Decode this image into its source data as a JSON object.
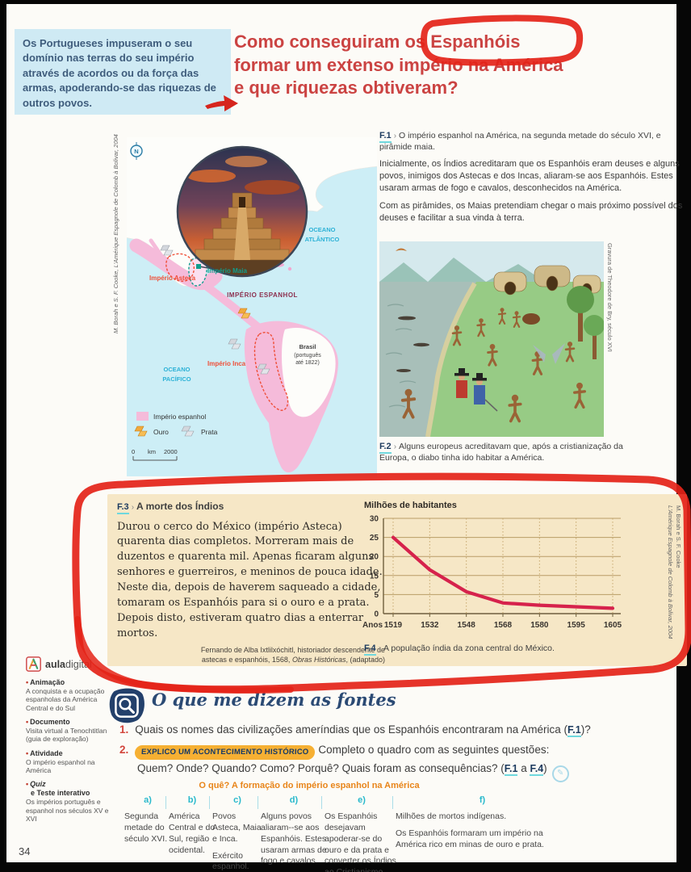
{
  "glyphs": {
    "chevron": "›",
    "pencil": "✎"
  },
  "page": {
    "number": "34"
  },
  "intro": {
    "text": "Os Portugueses impuseram o seu domínio nas terras do seu império através de acordos ou da força das armas, apoderando-se das riquezas de outros povos."
  },
  "title": {
    "line1": "Como conseguiram os Espanhóis",
    "line2": "formar um extenso império na América",
    "line3": "e que riquezas obtiveram?"
  },
  "f1": {
    "label": "F.1",
    "caption": "O império espanhol na América, na segunda metade do século XVI, e pirâmide maia.",
    "para1": "Inicialmente, os Índios acreditaram que os Espanhóis eram deuses e alguns povos, inimigos dos Astecas e dos Incas, aliaram-se aos Espanhóis. Estes usaram armas de fogo e cavalos, desconhecidos na América.",
    "para2": "Com as pirâmides, os Maias pretendiam chegar o mais próximo possível dos deuses e facilitar a sua vinda à terra."
  },
  "map": {
    "source": "M. Borah e S. F. Cooke, L'Amérique Espagnole de Colomb à Bolivar, 2004",
    "north": "N",
    "ocean_atlantico_1": "OCEANO",
    "ocean_atlantico_2": "ATLÂNTICO",
    "ocean_pacifico_1": "OCEANO",
    "ocean_pacifico_2": "PACÍFICO",
    "imperio_espanhol": "IMPÉRIO ESPANHOL",
    "imperio_maia": "Império Maia",
    "imperio_asteca": "Império Asteca",
    "imperio_inca": "Império Inca",
    "brasil_1": "Brasil",
    "brasil_2": "(português",
    "brasil_3": "até 1822)",
    "legend": {
      "imperio_espanhol": "Império espanhol",
      "ouro": "Ouro",
      "prata": "Prata"
    },
    "scale": {
      "zero": "0",
      "unit": "km",
      "max": "2000"
    }
  },
  "f2": {
    "label": "F.2",
    "caption": "Alguns europeus acreditavam que, após a cristianização da Europa, o diabo tinha ido habitar a América.",
    "credit": "Gravura de Theodore de Bry, século XVI"
  },
  "f3": {
    "label": "F.3",
    "title": "A morte dos Índios",
    "quote": "Durou o cerco do México (império Asteca) quarenta dias completos. Morreram mais de duzentos e quarenta mil. Apenas ficaram alguns senhores e guerreiros, e meninos de pouca idade. Neste dia, depois de haverem saqueado a cidade, tomaram os Espanhóis para si o ouro e a prata. Depois disto, estiveram quatro dias a enterrar mortos.",
    "source_line1": "Fernando de Alba Ixtlilxóchitl, historiador descendente de",
    "source_line2a": "astecas e espanhóis, 1568, ",
    "source_line2b": "Obras Históricas",
    "source_line2c": ", (adaptado)"
  },
  "f4": {
    "label": "F.4",
    "caption": "A população índia da zona central do México."
  },
  "chart_data": {
    "type": "line",
    "title": "Milhões de habitantes",
    "xlabel": "Anos",
    "x": [
      "1519",
      "1532",
      "1548",
      "1568",
      "1580",
      "1595",
      "1605"
    ],
    "values": [
      25,
      16.5,
      6.5,
      2.8,
      2.2,
      1.8,
      1.4
    ],
    "y_tick_labels": [
      "30",
      "25",
      "20",
      "15",
      "5",
      "0"
    ],
    "y_tick_values": [
      30,
      25,
      20,
      15,
      5,
      0
    ],
    "ylim": [
      0,
      30
    ],
    "grid": true,
    "legend_position": "none",
    "line_color": "#d6224c",
    "source_line1": "M. Borah e S. F. Cooke",
    "source_line2": "L'Amérique Espagnole de Colomb à Bolivar, 2004"
  },
  "sidebar": {
    "brand_bold": "aula",
    "brand_light": "digital",
    "items": [
      {
        "bullet": "•",
        "title": "Animação",
        "title2": "",
        "desc": "A conquista e a ocupação espanholas da América Central e do Sul"
      },
      {
        "bullet": "•",
        "title": "Documento",
        "title2": "",
        "desc": "Visita virtual a Tenochtitlan (guia de exploração)"
      },
      {
        "bullet": "•",
        "title": "Atividade",
        "title2": "",
        "desc": "O império espanhol na América"
      },
      {
        "bullet": "•",
        "title": "Quiz",
        "title2": "e Teste interativo",
        "desc": "Os impérios português e espanhol nos séculos XV e XVI"
      }
    ]
  },
  "fontes": {
    "heading": "O que me dizem as fontes",
    "q1": {
      "num": "1.",
      "before": "Quais os nomes das civilizações ameríndias que os Espanhóis encontraram na América (",
      "ref": "F.1",
      "after": ")?"
    },
    "q2": {
      "num": "2.",
      "tag": "EXPLICO UM ACONTECIMENTO HISTÓRICO",
      "text1": "Completo o quadro com as seguintes questões:",
      "before": "Quem? Onde? Quando? Como? Porquê? Quais foram as consequências? (",
      "ref1": "F.1",
      "mid": " a ",
      "ref2": "F.4",
      "after": ")"
    }
  },
  "table": {
    "title": "O quê? A formação do império espanhol na América",
    "columns": [
      {
        "letter": "a)",
        "lines": [
          "Segunda metade do século XVI."
        ]
      },
      {
        "letter": "b)",
        "lines": [
          "América Central e do Sul, região ocidental."
        ]
      },
      {
        "letter": "c)",
        "lines": [
          "Povos Asteca, Maia e Inca.",
          "Exército espanhol."
        ]
      },
      {
        "letter": "d)",
        "lines": [
          "Alguns povos aliaram--se aos Espanhóis. Estes usaram armas de fogo e cavalos"
        ]
      },
      {
        "letter": "e)",
        "lines": [
          "Os Espanhóis desejavam apoderar-se do ouro e da prata e converter os Índios ao Cristianismo."
        ]
      },
      {
        "letter": "f)",
        "lines": [
          "Milhões de mortos indígenas.",
          "Os Espanhóis formaram um império na América rico em minas de ouro e prata."
        ]
      }
    ]
  }
}
